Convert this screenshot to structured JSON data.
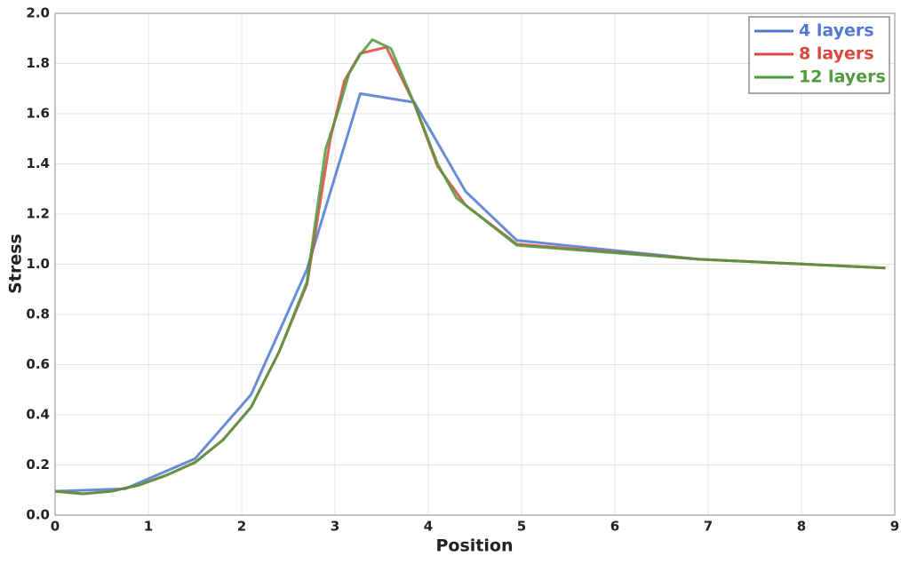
{
  "chart_data": {
    "type": "line",
    "xlabel": "Position",
    "ylabel": "Stress",
    "xlim": [
      0,
      9
    ],
    "xticks": [
      0,
      1,
      2,
      3,
      4,
      5,
      6,
      7,
      8,
      9
    ],
    "ylim": [
      0,
      2
    ],
    "yticks": [
      {
        "value": 0,
        "label": "0.0"
      },
      0.2,
      0.4,
      0.6,
      0.8,
      {
        "value": 1,
        "label": "1.0"
      },
      1.2,
      1.4,
      1.6,
      1.8,
      {
        "value": 2,
        "label": "2.0"
      }
    ],
    "grid": true,
    "legend": "upper right",
    "series": [
      {
        "name": "4 layers",
        "color": "#4f78d0",
        "x": [
          0,
          0.75,
          1.5,
          2.1,
          2.7,
          3.27,
          3.85,
          4.4,
          4.95,
          6.9,
          8.9
        ],
        "values": [
          0.095,
          0.105,
          0.225,
          0.48,
          0.98,
          1.68,
          1.645,
          1.29,
          1.095,
          1.02,
          0.985
        ]
      },
      {
        "name": "8 layers",
        "color": "#d9483a",
        "x": [
          0,
          0.3,
          0.6,
          0.9,
          1.2,
          1.5,
          1.8,
          2.1,
          2.4,
          2.7,
          2.95,
          3.1,
          3.27,
          3.55,
          3.85,
          4.1,
          4.4,
          4.95,
          6.9,
          8.9
        ],
        "values": [
          0.095,
          0.085,
          0.095,
          0.12,
          0.16,
          0.21,
          0.3,
          0.43,
          0.65,
          0.92,
          1.5,
          1.73,
          1.84,
          1.865,
          1.64,
          1.39,
          1.235,
          1.08,
          1.02,
          0.985
        ]
      },
      {
        "name": "12 layers",
        "color": "#4f9a3c",
        "x": [
          0,
          0.3,
          0.6,
          0.9,
          1.2,
          1.5,
          1.8,
          2.1,
          2.4,
          2.7,
          2.9,
          3.05,
          3.15,
          3.27,
          3.4,
          3.6,
          3.85,
          4.1,
          4.3,
          4.95,
          6.9,
          8.9
        ],
        "values": [
          0.095,
          0.085,
          0.095,
          0.12,
          0.16,
          0.21,
          0.3,
          0.43,
          0.65,
          0.93,
          1.46,
          1.63,
          1.76,
          1.835,
          1.895,
          1.86,
          1.64,
          1.4,
          1.265,
          1.075,
          1.02,
          0.985
        ]
      }
    ]
  }
}
